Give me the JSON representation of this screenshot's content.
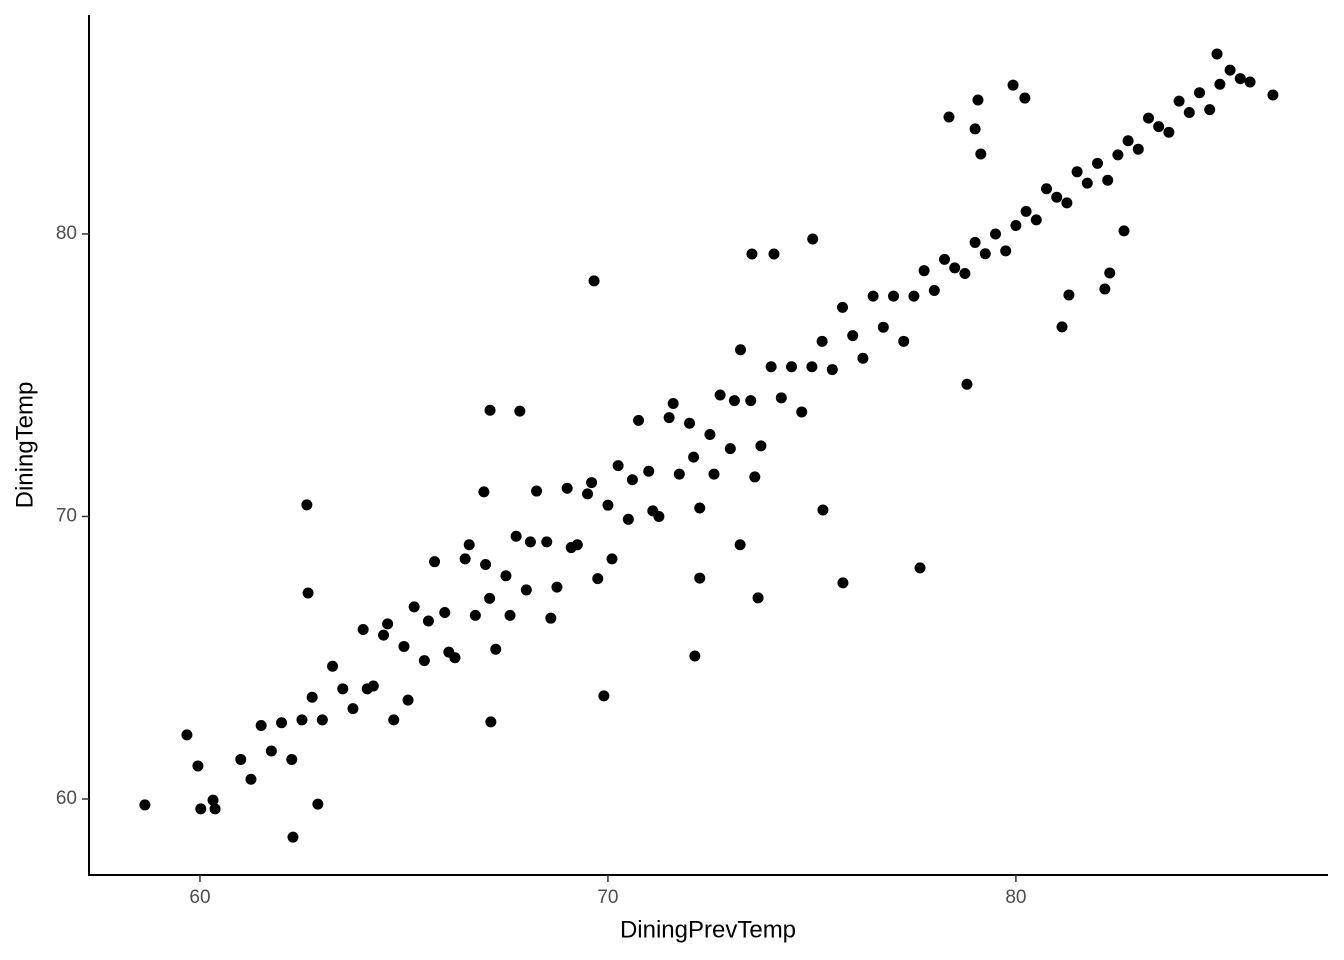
{
  "chart_data": {
    "type": "scatter",
    "x_label": "DiningPrevTemp",
    "y_label": "DiningTemp",
    "color": "#000000",
    "xlim": [
      57.28,
      87.65
    ],
    "ylim": [
      57.31,
      87.75
    ],
    "xticks": [
      60,
      70,
      80
    ],
    "yticks": [
      60,
      70,
      80
    ],
    "x": [
      58.65,
      59.68,
      59.95,
      60.02,
      60.37,
      60.32,
      62.28,
      62.89,
      62.62,
      62.65,
      67.13,
      69.66,
      69.9,
      72.13,
      73.53,
      74.07,
      75.02,
      75.76,
      77.65,
      75.27,
      78.36,
      79.07,
      79.0,
      79.14,
      79.93,
      80.22,
      81.13,
      81.3,
      82.3,
      82.18,
      82.65,
      84.93,
      86.3,
      85.74,
      73.24,
      72.25,
      73.68,
      78.8,
      67.84,
      66.96,
      67.11,
      61.0,
      61.25,
      61.5,
      61.75,
      62.0,
      62.25,
      62.5,
      62.75,
      63.0,
      63.25,
      63.5,
      63.75,
      64.0,
      64.25,
      64.5,
      64.75,
      65.0,
      65.25,
      65.5,
      65.75,
      66.0,
      66.25,
      66.5,
      66.75,
      67.0,
      67.25,
      67.5,
      67.75,
      68.0,
      68.25,
      68.5,
      68.75,
      69.0,
      69.25,
      69.5,
      69.75,
      70.0,
      70.25,
      70.5,
      70.75,
      71.0,
      71.25,
      71.5,
      71.75,
      72.0,
      72.25,
      72.5,
      72.75,
      73.0,
      73.25,
      73.5,
      73.75,
      74.0,
      74.25,
      74.5,
      74.75,
      75.0,
      75.25,
      75.5,
      75.75,
      76.0,
      76.25,
      76.5,
      76.75,
      77.0,
      77.25,
      77.5,
      77.75,
      78.0,
      78.25,
      78.5,
      78.75,
      79.0,
      79.25,
      79.5,
      79.75,
      80.0,
      80.25,
      80.5,
      80.75,
      81.0,
      81.25,
      81.5,
      81.75,
      82.0,
      82.25,
      82.5,
      82.75,
      83.0,
      83.25,
      83.5,
      83.75,
      84.0,
      84.25,
      84.5,
      84.75,
      85.0,
      85.25,
      85.5,
      64.1,
      64.6,
      65.1,
      65.6,
      66.1,
      66.6,
      67.1,
      67.6,
      68.1,
      68.6,
      69.1,
      69.6,
      70.1,
      70.6,
      71.1,
      71.6,
      72.1,
      72.6,
      73.1,
      73.6
    ],
    "values": [
      59.79,
      62.27,
      61.17,
      59.65,
      59.65,
      59.96,
      58.65,
      59.82,
      70.41,
      67.29,
      62.73,
      78.34,
      63.65,
      65.06,
      79.29,
      79.29,
      79.82,
      67.65,
      68.18,
      70.23,
      84.14,
      84.74,
      83.72,
      82.83,
      85.27,
      84.81,
      76.71,
      77.84,
      78.62,
      78.05,
      80.11,
      86.37,
      84.92,
      85.38,
      69.0,
      67.82,
      67.12,
      74.68,
      73.73,
      70.87,
      73.76,
      61.4,
      60.7,
      62.6,
      61.7,
      62.7,
      61.4,
      62.8,
      63.6,
      62.8,
      64.7,
      63.9,
      63.2,
      66.0,
      64.0,
      65.8,
      62.8,
      65.4,
      66.8,
      64.9,
      68.4,
      66.6,
      65.0,
      68.5,
      66.5,
      68.3,
      65.3,
      67.9,
      69.3,
      67.4,
      70.9,
      69.1,
      67.5,
      71.0,
      69.0,
      70.8,
      67.8,
      70.4,
      71.8,
      69.9,
      73.4,
      71.6,
      70.0,
      73.5,
      71.5,
      73.3,
      70.3,
      72.9,
      74.3,
      72.4,
      75.9,
      74.1,
      72.5,
      75.3,
      74.2,
      75.3,
      73.7,
      75.3,
      76.2,
      75.2,
      77.4,
      76.4,
      75.6,
      77.8,
      76.7,
      77.8,
      76.2,
      77.8,
      78.7,
      78.0,
      79.1,
      78.8,
      78.6,
      79.7,
      79.3,
      80.0,
      79.4,
      80.3,
      80.8,
      80.5,
      81.6,
      81.3,
      81.1,
      82.2,
      81.8,
      82.5,
      81.9,
      82.8,
      83.3,
      83.0,
      84.1,
      83.8,
      83.6,
      84.7,
      84.3,
      85.0,
      84.4,
      85.3,
      85.8,
      85.5,
      63.9,
      66.2,
      63.5,
      66.3,
      65.2,
      69.0,
      67.1,
      66.5,
      69.1,
      66.4,
      68.9,
      71.2,
      68.5,
      71.3,
      70.2,
      74.0,
      72.1,
      71.5,
      74.1,
      71.4
    ]
  }
}
